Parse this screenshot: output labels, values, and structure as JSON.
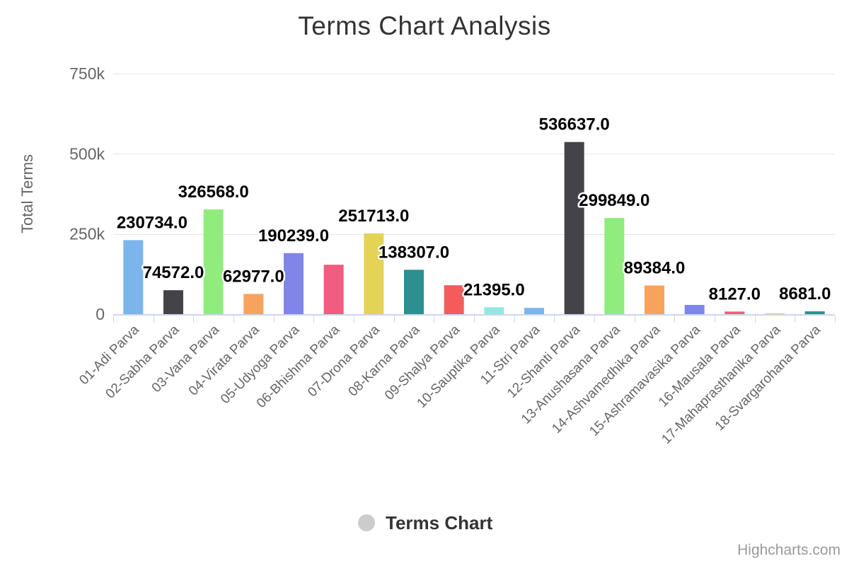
{
  "title": "Terms Chart Analysis",
  "credits": "Highcharts.com",
  "legend": {
    "label": "Terms Chart",
    "marker_color": "#cccccc"
  },
  "y_axis": {
    "title": "Total Terms",
    "tick_labels": [
      "0",
      "250k",
      "500k",
      "750k"
    ],
    "tick_values": [
      0,
      250000,
      500000,
      750000
    ],
    "max": 750000
  },
  "colors": {
    "background": "#ffffff",
    "title_text": "#333333",
    "axis_text": "#666666",
    "grid_line": "#e6e6e6",
    "axis_line": "#ccd6eb",
    "data_label_text": "#000000",
    "data_label_halo": "#ffffff",
    "legend_marker": "#cccccc",
    "credits_text": "#999999"
  },
  "chart_data": {
    "type": "bar",
    "title": "Terms Chart Analysis",
    "xlabel": "",
    "ylabel": "Total Terms",
    "ylim": [
      0,
      750000
    ],
    "ytick_labels": [
      "0",
      "250k",
      "500k",
      "750k"
    ],
    "ytick_values": [
      0,
      250000,
      500000,
      750000
    ],
    "grid": true,
    "legend": [
      "Terms Chart"
    ],
    "legend_position": "bottom",
    "categories": [
      "01-Adi Parva",
      "02-Sabha Parva",
      "03-Vana Parva",
      "04-Virata Parva",
      "05-Udyoga Parva",
      "06-Bhishma Parva",
      "07-Drona Parva",
      "08-Karna Parva",
      "09-Shalya Parva",
      "10-Sauptika Parva",
      "11-Stri Parva",
      "12-Shanti Parva",
      "13-Anushasana Parva",
      "14-Ashvamedhika Parva",
      "15-Ashramavasika Parva",
      "16-Mausala Parva",
      "17-Mahaprasthanika Parva",
      "18-Svargarohana Parva"
    ],
    "series": [
      {
        "name": "Terms Chart",
        "values": [
          230734,
          74572,
          326568,
          62977,
          190239,
          154000,
          251713,
          138307,
          90000,
          21395,
          19500,
          536637,
          299849,
          89384,
          28700,
          8127,
          2500,
          8681
        ]
      }
    ],
    "data_labels": [
      "230734.0",
      "74572.0",
      "326568.0",
      "62977.0",
      "190239.0",
      null,
      "251713.0",
      "138307.0",
      null,
      "21395.0",
      null,
      "536637.0",
      "299849.0",
      "89384.0",
      null,
      "8127.0",
      null,
      "8681.0"
    ],
    "point_colors": [
      "#7cb5ec",
      "#434348",
      "#90ed7d",
      "#f7a35c",
      "#8085e9",
      "#f15c80",
      "#e4d354",
      "#2b908f",
      "#f45b5b",
      "#91e8e1",
      "#7cb5ec",
      "#434348",
      "#90ed7d",
      "#f7a35c",
      "#8085e9",
      "#f15c80",
      "#e4d354",
      "#2b908f"
    ]
  }
}
